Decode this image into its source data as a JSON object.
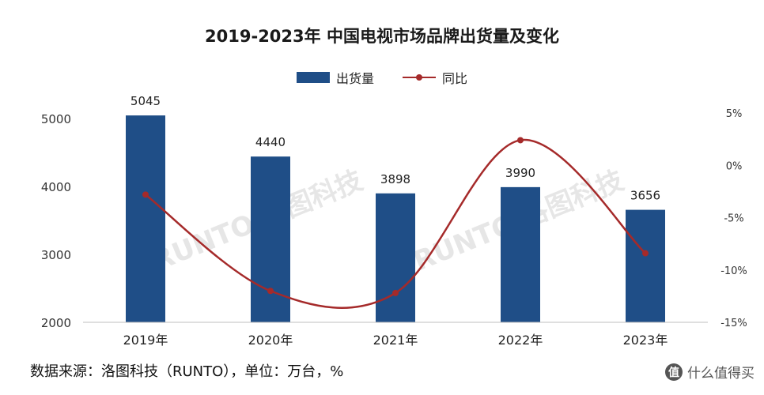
{
  "watermark": "RUNTO 洛图科技",
  "source_note": "数据来源：洛图科技（RUNTO），单位：万台，%",
  "brand": {
    "logo_text": "值",
    "label": "什么值得买"
  },
  "colors": {
    "bar": "#1f4e87",
    "line": "#a52a2a"
  },
  "chart_data": {
    "type": "bar",
    "title": "2019-2023年 中国电视市场品牌出货量及变化",
    "categories": [
      "2019年",
      "2020年",
      "2021年",
      "2022年",
      "2023年"
    ],
    "series": [
      {
        "name": "出货量",
        "type": "bar",
        "axis": "left",
        "values": [
          5045,
          4440,
          3898,
          3990,
          3656
        ],
        "data_labels": [
          "5045",
          "4440",
          "3898",
          "3990",
          "3656"
        ]
      },
      {
        "name": "同比",
        "type": "line",
        "axis": "right",
        "values": [
          -2.8,
          -12.0,
          -12.2,
          2.4,
          -8.4
        ]
      }
    ],
    "y_left": {
      "range": [
        2000,
        5000
      ],
      "ticks": [
        2000,
        3000,
        4000,
        5000
      ]
    },
    "y_right": {
      "range": [
        -15,
        5
      ],
      "ticks": [
        "5%",
        "0%",
        "-5%",
        "-10%",
        "-15%"
      ],
      "tick_values": [
        5,
        0,
        -5,
        -10,
        -15
      ]
    },
    "legend_position": "top-center",
    "grid": false
  }
}
